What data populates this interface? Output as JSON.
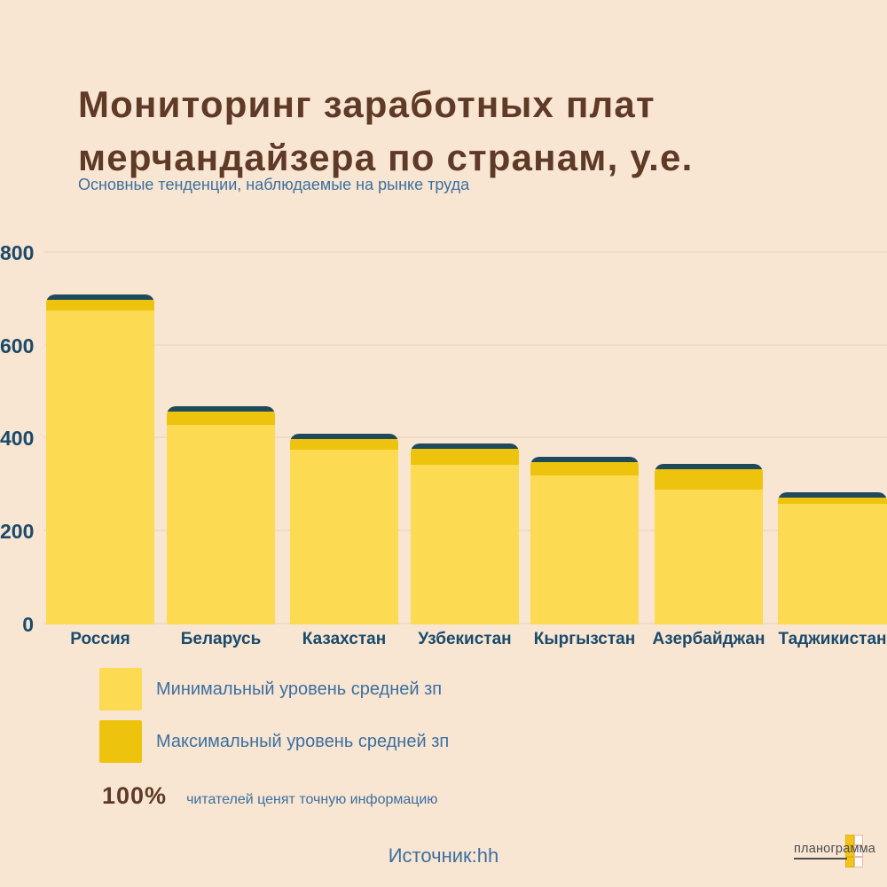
{
  "header": {
    "title_line1": "Мониторинг заработных плат",
    "title_line2": "мерчандайзера по странам, у.е.",
    "subtitle": "Основные тенденции, наблюдаемые на рынке труда"
  },
  "chart_data": {
    "type": "bar",
    "title": "Мониторинг заработных плат мерчандайзера по странам, у.е.",
    "subtitle": "Основные тенденции, наблюдаемые на рынке труда",
    "categories": [
      "Россия",
      "Беларусь",
      "Казахстан",
      "Узбекистан",
      "Кыргызстан",
      "Азербайджан",
      "Таджикистан"
    ],
    "series": [
      {
        "name": "Минимальный уровень средней зп",
        "values": [
          675,
          430,
          375,
          345,
          320,
          290,
          260
        ]
      },
      {
        "name": "Максимальный уровень средней зп",
        "values": [
          710,
          470,
          410,
          390,
          360,
          345,
          285
        ]
      }
    ],
    "xlabel": "",
    "ylabel": "",
    "ylim": [
      0,
      800
    ],
    "yticks": [
      0,
      200,
      400,
      600,
      800
    ],
    "grid": true,
    "legend_position": "bottom-left",
    "bar_style": "min level drawn in light yellow, max level as gold band on top, dark navy top border"
  },
  "legend": {
    "items": [
      {
        "label": "Минимальный уровень средней зп",
        "color": "#fcda51"
      },
      {
        "label": "Максимальный уровень средней зп",
        "color": "#edc30e"
      }
    ]
  },
  "stat": {
    "value": "100%",
    "text": "читателей ценят точную информацию"
  },
  "source": {
    "label": "Источник:hh"
  },
  "logo": {
    "text": "планограмма"
  },
  "colors": {
    "background": "#f8e6d3",
    "title": "#5e3a27",
    "accent_text": "#3c6f9f",
    "axis_text": "#1b4a6a",
    "bar_min": "#fcda51",
    "bar_max": "#edc30e",
    "bar_top_border": "#1e4a5c",
    "gridline": "#eedbc8"
  }
}
